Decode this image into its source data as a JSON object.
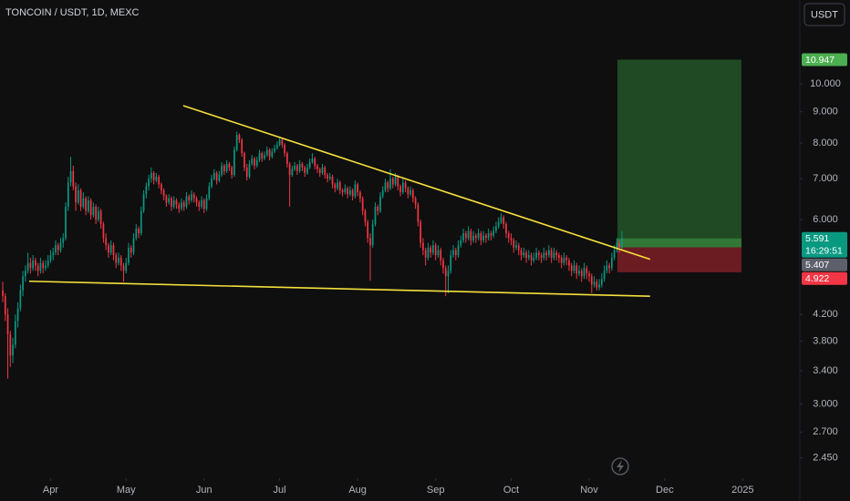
{
  "chart_data": {
    "type": "candlestick",
    "title": "TONCOIN / USDT, 1D, MEXC",
    "currency": "USDT",
    "log_y": true,
    "grid": false,
    "up_color": "#089981",
    "down_color": "#f23645",
    "ylim": [
      2.27,
      13.7
    ],
    "yticks": [
      {
        "value": 10,
        "label": "10.000"
      },
      {
        "value": 9,
        "label": "9.000"
      },
      {
        "value": 8,
        "label": "8.000"
      },
      {
        "value": 7,
        "label": "7.000"
      },
      {
        "value": 6,
        "label": "6.000"
      },
      {
        "value": 4.2,
        "label": "4.200"
      },
      {
        "value": 3.8,
        "label": "3.800"
      },
      {
        "value": 3.4,
        "label": "3.400"
      },
      {
        "value": 3,
        "label": "3.000"
      },
      {
        "value": 2.7,
        "label": "2.700"
      },
      {
        "value": 2.45,
        "label": "2.450"
      }
    ],
    "xlim": [
      -1.1,
      316.7
    ],
    "xticks": [
      {
        "value": 19,
        "label": "Apr"
      },
      {
        "value": 49,
        "label": "May"
      },
      {
        "value": 80,
        "label": "Jun"
      },
      {
        "value": 110,
        "label": "Jul"
      },
      {
        "value": 141,
        "label": "Aug"
      },
      {
        "value": 172,
        "label": "Sep"
      },
      {
        "value": 202,
        "label": "Oct"
      },
      {
        "value": 233,
        "label": "Nov"
      },
      {
        "value": 263,
        "label": "Dec"
      },
      {
        "value": 294,
        "label": "2025"
      }
    ],
    "last_price": 5.591,
    "last_price_color": "#089981",
    "countdown": "16:29:51",
    "position": {
      "target": 10.947,
      "entry": 5.407,
      "stop": 4.922,
      "start": 244.2,
      "end": 293.5,
      "profit_color": "#1f4a23",
      "loss_color": "#6b1c22",
      "target_color": "#4caf50",
      "entry_color": "#5d606b",
      "stop_color": "#f23645"
    },
    "trendlines": [
      {
        "points": [
          [
            71.7,
            9.21
          ],
          [
            257.2,
            5.17
          ]
        ],
        "color": "#f5e03b"
      },
      {
        "points": [
          [
            10.5,
            4.76
          ],
          [
            257.2,
            4.5
          ]
        ],
        "color": "#f5e03b"
      }
    ],
    "candles": [
      [
        4.6,
        4.75,
        4.4,
        4.5
      ],
      [
        4.5,
        4.55,
        4.1,
        4.2
      ],
      [
        4.2,
        4.3,
        3.3,
        3.9
      ],
      [
        3.9,
        3.95,
        3.45,
        3.6
      ],
      [
        3.6,
        3.85,
        3.5,
        3.75
      ],
      [
        3.75,
        4.2,
        3.7,
        4.1
      ],
      [
        4.1,
        4.4,
        4.0,
        4.3
      ],
      [
        4.3,
        4.7,
        4.25,
        4.6
      ],
      [
        4.6,
        4.95,
        4.5,
        4.85
      ],
      [
        4.85,
        5.05,
        4.75,
        4.95
      ],
      [
        4.95,
        5.3,
        4.9,
        5.1
      ],
      [
        5.1,
        5.2,
        4.9,
        5.0
      ],
      [
        5.0,
        5.25,
        4.95,
        5.15
      ],
      [
        5.15,
        5.2,
        4.95,
        5.05
      ],
      [
        5.05,
        5.1,
        4.85,
        4.95
      ],
      [
        4.95,
        5.2,
        4.9,
        5.1
      ],
      [
        5.1,
        5.15,
        4.9,
        5.0
      ],
      [
        5.0,
        5.15,
        4.95,
        5.05
      ],
      [
        5.05,
        5.25,
        5.0,
        5.15
      ],
      [
        5.15,
        5.35,
        5.1,
        5.25
      ],
      [
        5.25,
        5.4,
        5.15,
        5.3
      ],
      [
        5.3,
        5.55,
        5.25,
        5.45
      ],
      [
        5.45,
        5.5,
        5.25,
        5.35
      ],
      [
        5.35,
        5.6,
        5.3,
        5.5
      ],
      [
        5.5,
        5.7,
        5.4,
        5.6
      ],
      [
        5.6,
        6.4,
        5.55,
        6.3
      ],
      [
        6.3,
        7.05,
        6.2,
        6.9
      ],
      [
        6.9,
        7.6,
        6.8,
        7.2
      ],
      [
        7.2,
        7.35,
        6.7,
        6.8
      ],
      [
        6.8,
        6.9,
        6.2,
        6.4
      ],
      [
        6.4,
        6.85,
        6.35,
        6.7
      ],
      [
        6.7,
        6.75,
        6.2,
        6.3
      ],
      [
        6.3,
        6.65,
        6.25,
        6.5
      ],
      [
        6.5,
        6.55,
        6.1,
        6.2
      ],
      [
        6.2,
        6.55,
        6.15,
        6.45
      ],
      [
        6.45,
        6.5,
        6.0,
        6.1
      ],
      [
        6.1,
        6.4,
        6.05,
        6.3
      ],
      [
        6.3,
        6.35,
        5.9,
        6.0
      ],
      [
        6.0,
        6.3,
        5.95,
        6.2
      ],
      [
        6.2,
        6.25,
        5.8,
        5.9
      ],
      [
        5.9,
        5.95,
        5.5,
        5.6
      ],
      [
        5.6,
        5.7,
        5.35,
        5.45
      ],
      [
        5.45,
        5.5,
        5.2,
        5.3
      ],
      [
        5.3,
        5.55,
        5.25,
        5.45
      ],
      [
        5.45,
        5.5,
        5.15,
        5.25
      ],
      [
        5.25,
        5.3,
        5.0,
        5.1
      ],
      [
        5.1,
        5.3,
        5.05,
        5.2
      ],
      [
        5.2,
        5.25,
        4.95,
        5.05
      ],
      [
        5.05,
        5.1,
        4.75,
        4.95
      ],
      [
        4.95,
        5.2,
        4.9,
        5.1
      ],
      [
        5.1,
        5.5,
        5.05,
        5.4
      ],
      [
        5.4,
        5.45,
        5.2,
        5.3
      ],
      [
        5.3,
        5.7,
        5.25,
        5.6
      ],
      [
        5.6,
        5.9,
        5.55,
        5.8
      ],
      [
        5.8,
        5.85,
        5.6,
        5.7
      ],
      [
        5.7,
        6.3,
        5.65,
        6.2
      ],
      [
        6.2,
        6.7,
        6.15,
        6.6
      ],
      [
        6.6,
        6.9,
        6.5,
        6.8
      ],
      [
        6.8,
        7.1,
        6.7,
        7.0
      ],
      [
        7.0,
        7.3,
        6.9,
        7.15
      ],
      [
        7.15,
        7.2,
        6.85,
        6.95
      ],
      [
        6.95,
        7.15,
        6.9,
        7.05
      ],
      [
        7.05,
        7.1,
        6.75,
        6.85
      ],
      [
        6.85,
        6.9,
        6.6,
        6.7
      ],
      [
        6.7,
        6.75,
        6.45,
        6.55
      ],
      [
        6.55,
        6.6,
        6.3,
        6.4
      ],
      [
        6.4,
        6.6,
        6.35,
        6.5
      ],
      [
        6.5,
        6.55,
        6.2,
        6.3
      ],
      [
        6.3,
        6.55,
        6.25,
        6.45
      ],
      [
        6.45,
        6.5,
        6.25,
        6.35
      ],
      [
        6.35,
        6.4,
        6.15,
        6.25
      ],
      [
        6.25,
        6.5,
        6.2,
        6.4
      ],
      [
        6.4,
        6.45,
        6.2,
        6.3
      ],
      [
        6.3,
        6.65,
        6.25,
        6.55
      ],
      [
        6.55,
        6.6,
        6.35,
        6.45
      ],
      [
        6.45,
        6.7,
        6.4,
        6.6
      ],
      [
        6.6,
        6.65,
        6.4,
        6.5
      ],
      [
        6.5,
        6.55,
        6.3,
        6.4
      ],
      [
        6.4,
        6.45,
        6.2,
        6.3
      ],
      [
        6.3,
        6.55,
        6.25,
        6.45
      ],
      [
        6.45,
        6.5,
        6.15,
        6.25
      ],
      [
        6.25,
        6.6,
        6.2,
        6.5
      ],
      [
        6.5,
        6.9,
        6.45,
        6.8
      ],
      [
        6.8,
        7.1,
        6.75,
        7.0
      ],
      [
        7.0,
        7.25,
        6.95,
        7.15
      ],
      [
        7.15,
        7.2,
        6.85,
        6.95
      ],
      [
        6.95,
        7.2,
        6.9,
        7.1
      ],
      [
        7.1,
        7.45,
        7.05,
        7.35
      ],
      [
        7.35,
        7.4,
        7.1,
        7.2
      ],
      [
        7.2,
        7.5,
        7.15,
        7.4
      ],
      [
        7.4,
        7.45,
        7.2,
        7.3
      ],
      [
        7.3,
        7.35,
        7.0,
        7.1
      ],
      [
        7.1,
        7.9,
        7.05,
        7.8
      ],
      [
        7.8,
        8.35,
        7.75,
        8.25
      ],
      [
        8.25,
        8.3,
        8.0,
        8.1
      ],
      [
        8.1,
        8.15,
        7.6,
        7.7
      ],
      [
        7.7,
        7.75,
        7.2,
        7.3
      ],
      [
        7.3,
        7.4,
        6.95,
        7.05
      ],
      [
        7.05,
        7.5,
        7.0,
        7.4
      ],
      [
        7.4,
        7.65,
        7.35,
        7.55
      ],
      [
        7.55,
        7.6,
        7.25,
        7.35
      ],
      [
        7.35,
        7.6,
        7.3,
        7.5
      ],
      [
        7.5,
        7.8,
        7.45,
        7.7
      ],
      [
        7.7,
        7.75,
        7.45,
        7.55
      ],
      [
        7.55,
        7.75,
        7.5,
        7.65
      ],
      [
        7.65,
        7.9,
        7.6,
        7.8
      ],
      [
        7.8,
        7.85,
        7.5,
        7.6
      ],
      [
        7.6,
        7.85,
        7.55,
        7.75
      ],
      [
        7.75,
        7.95,
        7.7,
        7.85
      ],
      [
        7.85,
        8.05,
        7.8,
        7.95
      ],
      [
        7.95,
        8.2,
        7.9,
        8.1
      ],
      [
        8.1,
        8.15,
        7.85,
        7.95
      ],
      [
        7.95,
        8.0,
        7.6,
        7.7
      ],
      [
        7.7,
        7.75,
        7.3,
        7.4
      ],
      [
        7.4,
        7.45,
        6.3,
        7.1
      ],
      [
        7.1,
        7.35,
        7.05,
        7.25
      ],
      [
        7.25,
        7.45,
        7.2,
        7.35
      ],
      [
        7.35,
        7.4,
        7.1,
        7.2
      ],
      [
        7.2,
        7.5,
        7.15,
        7.4
      ],
      [
        7.4,
        7.45,
        7.2,
        7.3
      ],
      [
        7.3,
        7.35,
        7.05,
        7.15
      ],
      [
        7.15,
        7.4,
        7.1,
        7.3
      ],
      [
        7.3,
        7.55,
        7.25,
        7.45
      ],
      [
        7.45,
        7.7,
        7.4,
        7.55
      ],
      [
        7.55,
        7.6,
        7.25,
        7.35
      ],
      [
        7.35,
        7.4,
        7.15,
        7.25
      ],
      [
        7.25,
        7.3,
        7.05,
        7.15
      ],
      [
        7.15,
        7.4,
        7.1,
        7.3
      ],
      [
        7.3,
        7.35,
        7.0,
        7.1
      ],
      [
        7.1,
        7.15,
        6.9,
        7.0
      ],
      [
        7.0,
        7.15,
        6.95,
        7.05
      ],
      [
        7.05,
        7.1,
        6.75,
        6.85
      ],
      [
        6.85,
        6.9,
        6.65,
        6.75
      ],
      [
        6.75,
        7.0,
        6.7,
        6.9
      ],
      [
        6.9,
        6.95,
        6.6,
        6.7
      ],
      [
        6.7,
        6.75,
        6.55,
        6.65
      ],
      [
        6.65,
        6.85,
        6.6,
        6.75
      ],
      [
        6.75,
        6.8,
        6.5,
        6.6
      ],
      [
        6.6,
        6.8,
        6.55,
        6.7
      ],
      [
        6.7,
        6.75,
        6.45,
        6.55
      ],
      [
        6.55,
        6.95,
        6.5,
        6.85
      ],
      [
        6.85,
        6.9,
        6.55,
        6.65
      ],
      [
        6.65,
        6.7,
        6.4,
        6.5
      ],
      [
        6.5,
        6.55,
        6.1,
        6.2
      ],
      [
        6.2,
        6.25,
        5.85,
        5.95
      ],
      [
        5.95,
        6.0,
        5.5,
        5.6
      ],
      [
        5.6,
        5.7,
        4.77,
        5.45
      ],
      [
        5.45,
        6.0,
        5.4,
        5.9
      ],
      [
        5.9,
        6.4,
        5.85,
        6.3
      ],
      [
        6.3,
        6.35,
        6.1,
        6.2
      ],
      [
        6.2,
        6.65,
        6.15,
        6.55
      ],
      [
        6.55,
        6.8,
        6.5,
        6.7
      ],
      [
        6.7,
        7.0,
        6.65,
        6.9
      ],
      [
        6.9,
        6.95,
        6.65,
        6.75
      ],
      [
        6.75,
        7.25,
        6.7,
        7.0
      ],
      [
        7.0,
        7.05,
        6.75,
        6.85
      ],
      [
        6.85,
        7.15,
        6.8,
        7.05
      ],
      [
        7.05,
        7.1,
        6.7,
        6.8
      ],
      [
        6.8,
        6.85,
        6.55,
        6.65
      ],
      [
        6.65,
        7.0,
        6.6,
        6.9
      ],
      [
        6.9,
        6.95,
        6.65,
        6.75
      ],
      [
        6.75,
        6.8,
        6.5,
        6.6
      ],
      [
        6.6,
        6.8,
        6.55,
        6.7
      ],
      [
        6.7,
        6.75,
        6.4,
        6.5
      ],
      [
        6.5,
        6.55,
        6.25,
        6.35
      ],
      [
        6.35,
        6.4,
        5.85,
        5.95
      ],
      [
        5.95,
        6.0,
        5.4,
        5.5
      ],
      [
        5.5,
        5.6,
        5.25,
        5.35
      ],
      [
        5.35,
        5.4,
        5.05,
        5.2
      ],
      [
        5.2,
        5.5,
        5.15,
        5.4
      ],
      [
        5.4,
        5.45,
        5.2,
        5.3
      ],
      [
        5.3,
        5.55,
        5.25,
        5.45
      ],
      [
        5.45,
        5.5,
        5.15,
        5.25
      ],
      [
        5.25,
        5.45,
        5.2,
        5.35
      ],
      [
        5.35,
        5.4,
        5.05,
        5.15
      ],
      [
        5.15,
        5.2,
        4.9,
        5.0
      ],
      [
        5.0,
        5.05,
        4.5,
        4.85
      ],
      [
        4.85,
        5.05,
        4.55,
        4.95
      ],
      [
        4.95,
        5.35,
        4.9,
        5.25
      ],
      [
        5.25,
        5.45,
        5.2,
        5.35
      ],
      [
        5.35,
        5.4,
        5.15,
        5.25
      ],
      [
        5.25,
        5.55,
        5.2,
        5.45
      ],
      [
        5.45,
        5.65,
        5.4,
        5.55
      ],
      [
        5.55,
        5.8,
        5.5,
        5.7
      ],
      [
        5.7,
        5.75,
        5.5,
        5.6
      ],
      [
        5.6,
        5.85,
        5.55,
        5.75
      ],
      [
        5.75,
        5.8,
        5.45,
        5.55
      ],
      [
        5.55,
        5.75,
        5.5,
        5.65
      ],
      [
        5.65,
        5.7,
        5.5,
        5.6
      ],
      [
        5.6,
        5.8,
        5.55,
        5.7
      ],
      [
        5.7,
        5.75,
        5.45,
        5.55
      ],
      [
        5.55,
        5.75,
        5.5,
        5.65
      ],
      [
        5.65,
        5.7,
        5.5,
        5.6
      ],
      [
        5.6,
        5.8,
        5.55,
        5.7
      ],
      [
        5.7,
        5.75,
        5.55,
        5.65
      ],
      [
        5.65,
        5.85,
        5.6,
        5.75
      ],
      [
        5.75,
        5.95,
        5.7,
        5.85
      ],
      [
        5.85,
        6.05,
        5.8,
        5.95
      ],
      [
        5.95,
        6.15,
        5.9,
        6.05
      ],
      [
        6.05,
        6.1,
        5.8,
        5.9
      ],
      [
        5.9,
        5.95,
        5.6,
        5.7
      ],
      [
        5.7,
        5.75,
        5.5,
        5.6
      ],
      [
        5.6,
        5.7,
        5.45,
        5.55
      ],
      [
        5.55,
        5.6,
        5.3,
        5.4
      ],
      [
        5.4,
        5.55,
        5.35,
        5.45
      ],
      [
        5.45,
        5.5,
        5.25,
        5.35
      ],
      [
        5.35,
        5.4,
        5.15,
        5.25
      ],
      [
        5.25,
        5.4,
        5.2,
        5.3
      ],
      [
        5.3,
        5.35,
        5.1,
        5.2
      ],
      [
        5.2,
        5.35,
        5.15,
        5.25
      ],
      [
        5.25,
        5.3,
        5.05,
        5.15
      ],
      [
        5.15,
        5.3,
        5.1,
        5.2
      ],
      [
        5.2,
        5.4,
        5.15,
        5.3
      ],
      [
        5.3,
        5.35,
        5.15,
        5.25
      ],
      [
        5.25,
        5.3,
        5.1,
        5.2
      ],
      [
        5.2,
        5.4,
        5.15,
        5.3
      ],
      [
        5.3,
        5.35,
        5.15,
        5.25
      ],
      [
        5.25,
        5.45,
        5.2,
        5.35
      ],
      [
        5.35,
        5.4,
        5.1,
        5.2
      ],
      [
        5.2,
        5.4,
        5.15,
        5.3
      ],
      [
        5.3,
        5.35,
        5.15,
        5.25
      ],
      [
        5.25,
        5.3,
        5.1,
        5.2
      ],
      [
        5.2,
        5.25,
        5.0,
        5.1
      ],
      [
        5.1,
        5.3,
        5.05,
        5.2
      ],
      [
        5.2,
        5.25,
        5.05,
        5.15
      ],
      [
        5.15,
        5.2,
        4.95,
        5.05
      ],
      [
        5.05,
        5.1,
        4.85,
        4.95
      ],
      [
        4.95,
        5.15,
        4.9,
        5.05
      ],
      [
        5.05,
        5.1,
        4.8,
        4.9
      ],
      [
        4.9,
        5.05,
        4.85,
        4.95
      ],
      [
        4.95,
        5.0,
        4.75,
        4.85
      ],
      [
        4.85,
        5.1,
        4.8,
        5.0
      ],
      [
        5.0,
        5.05,
        4.8,
        4.9
      ],
      [
        4.9,
        4.95,
        4.75,
        4.85
      ],
      [
        4.85,
        4.9,
        4.55,
        4.7
      ],
      [
        4.7,
        4.85,
        4.65,
        4.75
      ],
      [
        4.75,
        4.8,
        4.6,
        4.65
      ],
      [
        4.65,
        4.8,
        4.6,
        4.7
      ],
      [
        4.7,
        4.9,
        4.65,
        4.8
      ],
      [
        4.8,
        5.05,
        4.75,
        4.95
      ],
      [
        4.95,
        5.15,
        4.9,
        5.05
      ],
      [
        5.05,
        5.1,
        4.9,
        5.0
      ],
      [
        5.0,
        5.3,
        4.95,
        5.2
      ],
      [
        5.2,
        5.45,
        5.15,
        5.35
      ],
      [
        5.35,
        5.6,
        5.3,
        5.5
      ],
      [
        5.5,
        5.55,
        5.3,
        5.4
      ],
      [
        5.4,
        5.75,
        5.35,
        5.591
      ]
    ]
  }
}
